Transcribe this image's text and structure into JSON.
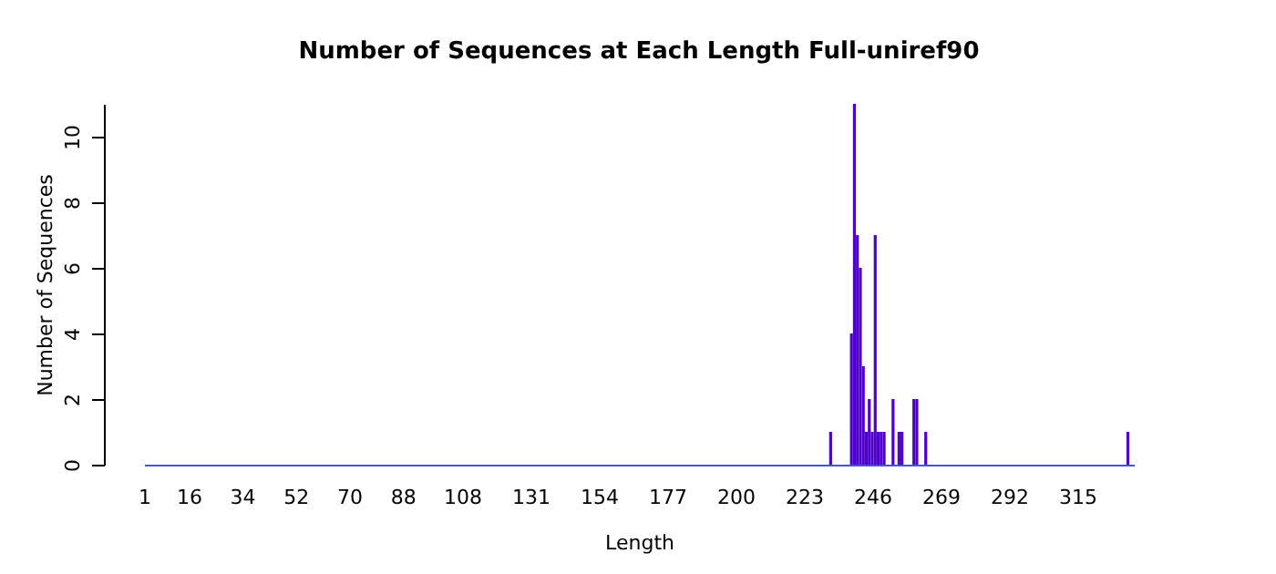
{
  "chart_data": {
    "type": "bar",
    "title": "Number of Sequences at Each Length  Full-uniref90",
    "xlabel": "Length",
    "ylabel": "Number of Sequences",
    "x": [
      232,
      239,
      240,
      241,
      242,
      243,
      244,
      245,
      246,
      247,
      248,
      249,
      250,
      253,
      255,
      256,
      260,
      261,
      264,
      332
    ],
    "values": [
      1,
      4,
      11,
      7,
      6,
      3,
      1,
      2,
      1,
      7,
      1,
      1,
      1,
      2,
      1,
      1,
      2,
      2,
      1,
      1
    ],
    "color": "#5000cc",
    "xlim": [
      1,
      334
    ],
    "xticks": [
      1,
      16,
      34,
      52,
      70,
      88,
      108,
      131,
      154,
      177,
      200,
      223,
      246,
      269,
      292,
      315
    ],
    "ylim": [
      0,
      11
    ],
    "yticks": [
      0,
      2,
      4,
      6,
      8,
      10
    ],
    "grid": false
  }
}
